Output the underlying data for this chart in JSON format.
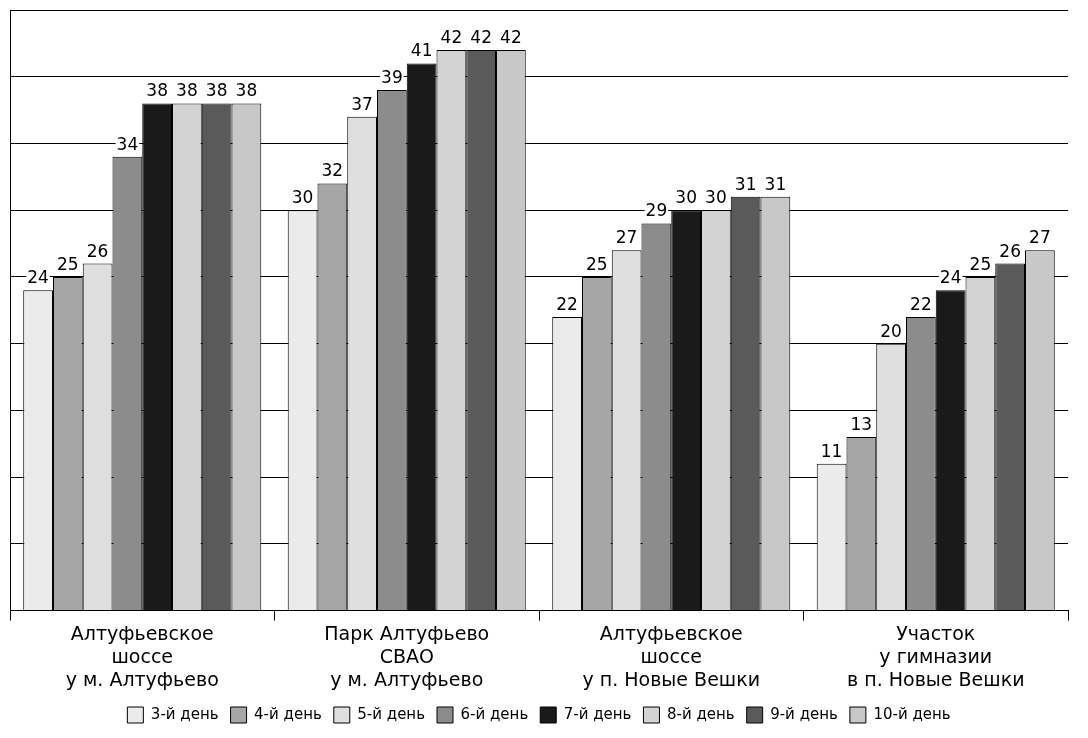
{
  "chart_data": {
    "type": "bar",
    "categories": [
      "Алтуфьевское\nшоссе\nу м. Алтуфьево",
      "Парк Алтуфьево\nСВАО\nу м. Алтуфьево",
      "Алтуфьевское\nшоссе\nу п. Новые Вешки",
      "Участок\nу гимназии\nв п. Новые Вешки"
    ],
    "series": [
      {
        "name": "3-й день",
        "color": "#ebebeb",
        "values": [
          24,
          30,
          22,
          11
        ]
      },
      {
        "name": "4-й день",
        "color": "#a6a6a6",
        "values": [
          25,
          32,
          25,
          13
        ]
      },
      {
        "name": "5-й день",
        "color": "#dfdfdf",
        "values": [
          26,
          37,
          27,
          20
        ]
      },
      {
        "name": "6-й день",
        "color": "#8c8c8c",
        "values": [
          34,
          39,
          29,
          22
        ]
      },
      {
        "name": "7-й день",
        "color": "#1a1a1a",
        "values": [
          38,
          41,
          30,
          24
        ]
      },
      {
        "name": "8-й день",
        "color": "#d3d3d3",
        "values": [
          38,
          42,
          30,
          25
        ]
      },
      {
        "name": "9-й день",
        "color": "#5a5a5a",
        "values": [
          38,
          42,
          31,
          26
        ]
      },
      {
        "name": "10-й день",
        "color": "#c8c8c8",
        "values": [
          38,
          42,
          31,
          27
        ]
      }
    ],
    "ylim": [
      0,
      45
    ],
    "yticks": [
      {
        "value": 0,
        "label": null
      },
      {
        "value": 5,
        "label": null
      },
      {
        "value": 10,
        "label": null
      },
      {
        "value": 15,
        "label": null
      },
      {
        "value": 20,
        "label": null
      },
      {
        "value": 25,
        "label": null
      },
      {
        "value": 30,
        "label": null
      },
      {
        "value": 35,
        "label": null
      },
      {
        "value": 40,
        "label": null
      },
      {
        "value": 45,
        "label": null
      }
    ],
    "tick_labels": "x",
    "grid": "y",
    "legend": "bottom",
    "data_labels": true
  }
}
